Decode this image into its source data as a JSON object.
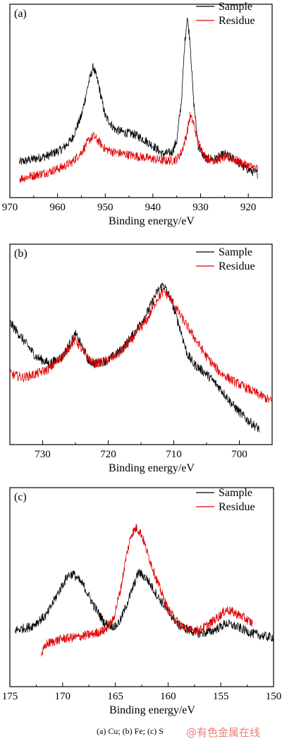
{
  "chart_data": [
    {
      "type": "line",
      "panel_label": "(a)",
      "xlabel": "Binding energy/eV",
      "ylabel": "",
      "xlim": [
        970,
        915
      ],
      "x_reversed": true,
      "xticks": [
        970,
        960,
        950,
        940,
        930,
        920
      ],
      "yticks": false,
      "grid": false,
      "legend_position": "top-right",
      "series": [
        {
          "name": "Sample",
          "color": "#000000",
          "x_range": [
            968,
            918
          ],
          "points": [
            [
              968,
              0.12
            ],
            [
              965,
              0.14
            ],
            [
              962,
              0.16
            ],
            [
              959,
              0.2
            ],
            [
              957,
              0.26
            ],
            [
              955,
              0.4
            ],
            [
              953.5,
              0.6
            ],
            [
              952.5,
              0.7
            ],
            [
              951.5,
              0.6
            ],
            [
              950,
              0.4
            ],
            [
              948,
              0.32
            ],
            [
              946,
              0.3
            ],
            [
              944,
              0.29
            ],
            [
              942,
              0.26
            ],
            [
              940,
              0.22
            ],
            [
              938,
              0.17
            ],
            [
              936,
              0.18
            ],
            [
              935,
              0.25
            ],
            [
              934,
              0.5
            ],
            [
              933.3,
              0.85
            ],
            [
              932.8,
              1.0
            ],
            [
              932.2,
              0.85
            ],
            [
              931.5,
              0.5
            ],
            [
              930.5,
              0.22
            ],
            [
              929,
              0.14
            ],
            [
              927,
              0.14
            ],
            [
              925,
              0.17
            ],
            [
              923,
              0.14
            ],
            [
              921,
              0.09
            ],
            [
              918,
              0.05
            ]
          ]
        },
        {
          "name": "Residue",
          "color": "#e00000",
          "x_range": [
            968,
            918
          ],
          "points": [
            [
              968,
              0.02
            ],
            [
              965,
              0.04
            ],
            [
              962,
              0.06
            ],
            [
              959,
              0.09
            ],
            [
              957,
              0.12
            ],
            [
              955,
              0.18
            ],
            [
              953.5,
              0.25
            ],
            [
              952.5,
              0.28
            ],
            [
              951.5,
              0.25
            ],
            [
              950,
              0.2
            ],
            [
              948,
              0.18
            ],
            [
              946,
              0.17
            ],
            [
              944,
              0.16
            ],
            [
              942,
              0.15
            ],
            [
              940,
              0.14
            ],
            [
              938,
              0.13
            ],
            [
              936,
              0.13
            ],
            [
              935,
              0.14
            ],
            [
              934,
              0.18
            ],
            [
              933,
              0.28
            ],
            [
              932.2,
              0.4
            ],
            [
              931.5,
              0.36
            ],
            [
              930.5,
              0.24
            ],
            [
              929,
              0.15
            ],
            [
              927,
              0.13
            ],
            [
              925,
              0.15
            ],
            [
              923,
              0.14
            ],
            [
              921,
              0.11
            ],
            [
              918,
              0.08
            ]
          ]
        }
      ]
    },
    {
      "type": "line",
      "panel_label": "(b)",
      "xlabel": "Binding energy/eV",
      "ylabel": "",
      "xlim": [
        735,
        695
      ],
      "x_reversed": true,
      "xticks": [
        730,
        720,
        710,
        700
      ],
      "yticks": false,
      "grid": false,
      "legend_position": "top-right",
      "series": [
        {
          "name": "Sample",
          "color": "#000000",
          "x_range": [
            735,
            697
          ],
          "points": [
            [
              735,
              0.62
            ],
            [
              733,
              0.52
            ],
            [
              731,
              0.42
            ],
            [
              729,
              0.38
            ],
            [
              727,
              0.42
            ],
            [
              725.5,
              0.52
            ],
            [
              725,
              0.55
            ],
            [
              724,
              0.48
            ],
            [
              723,
              0.4
            ],
            [
              722,
              0.38
            ],
            [
              720,
              0.4
            ],
            [
              718,
              0.46
            ],
            [
              716,
              0.56
            ],
            [
              714,
              0.68
            ],
            [
              712.5,
              0.8
            ],
            [
              711.6,
              0.84
            ],
            [
              710.5,
              0.76
            ],
            [
              709,
              0.58
            ],
            [
              708,
              0.44
            ],
            [
              707,
              0.38
            ],
            [
              705,
              0.32
            ],
            [
              703,
              0.24
            ],
            [
              701,
              0.14
            ],
            [
              699,
              0.06
            ],
            [
              697,
              0.0
            ]
          ]
        },
        {
          "name": "Residue",
          "color": "#e00000",
          "x_range": [
            735,
            695
          ],
          "points": [
            [
              735,
              0.32
            ],
            [
              733,
              0.3
            ],
            [
              731,
              0.32
            ],
            [
              729,
              0.35
            ],
            [
              727,
              0.42
            ],
            [
              725.5,
              0.5
            ],
            [
              725,
              0.52
            ],
            [
              724,
              0.46
            ],
            [
              723,
              0.4
            ],
            [
              722,
              0.38
            ],
            [
              720,
              0.4
            ],
            [
              718,
              0.45
            ],
            [
              716,
              0.54
            ],
            [
              714,
              0.64
            ],
            [
              712.5,
              0.76
            ],
            [
              711.5,
              0.8
            ],
            [
              710.5,
              0.76
            ],
            [
              709,
              0.66
            ],
            [
              707,
              0.54
            ],
            [
              705,
              0.42
            ],
            [
              703,
              0.33
            ],
            [
              701,
              0.28
            ],
            [
              699,
              0.24
            ],
            [
              697,
              0.2
            ],
            [
              695,
              0.16
            ]
          ]
        }
      ]
    },
    {
      "type": "line",
      "panel_label": "(c)",
      "xlabel": "Binding energy/eV",
      "ylabel": "",
      "xlim": [
        175,
        150
      ],
      "x_reversed": true,
      "xticks": [
        175,
        170,
        165,
        160,
        155,
        150
      ],
      "yticks": false,
      "grid": false,
      "legend_position": "top-right",
      "series": [
        {
          "name": "Sample",
          "color": "#000000",
          "x_range": [
            174.5,
            150
          ],
          "points": [
            [
              174.5,
              0.24
            ],
            [
              173,
              0.26
            ],
            [
              171.5,
              0.33
            ],
            [
              170.5,
              0.45
            ],
            [
              169.5,
              0.56
            ],
            [
              169,
              0.57
            ],
            [
              168,
              0.5
            ],
            [
              167,
              0.38
            ],
            [
              166,
              0.28
            ],
            [
              165,
              0.26
            ],
            [
              164.5,
              0.3
            ],
            [
              163.5,
              0.46
            ],
            [
              162.8,
              0.58
            ],
            [
              162,
              0.54
            ],
            [
              161,
              0.44
            ],
            [
              160,
              0.35
            ],
            [
              159,
              0.27
            ],
            [
              158,
              0.24
            ],
            [
              157,
              0.22
            ],
            [
              156,
              0.23
            ],
            [
              155,
              0.26
            ],
            [
              154.5,
              0.28
            ],
            [
              153.5,
              0.26
            ],
            [
              152,
              0.22
            ],
            [
              150.5,
              0.2
            ],
            [
              150,
              0.2
            ]
          ]
        },
        {
          "name": "Residue",
          "color": "#e00000",
          "x_range": [
            172,
            152
          ],
          "points": [
            [
              172,
              0.1
            ],
            [
              171.5,
              0.16
            ],
            [
              170,
              0.19
            ],
            [
              168.5,
              0.2
            ],
            [
              167,
              0.22
            ],
            [
              166,
              0.24
            ],
            [
              165.2,
              0.3
            ],
            [
              164.5,
              0.48
            ],
            [
              164,
              0.66
            ],
            [
              163.5,
              0.8
            ],
            [
              163,
              0.84
            ],
            [
              162.5,
              0.8
            ],
            [
              162,
              0.7
            ],
            [
              161,
              0.52
            ],
            [
              160,
              0.36
            ],
            [
              159,
              0.28
            ],
            [
              158,
              0.24
            ],
            [
              157,
              0.24
            ],
            [
              156,
              0.28
            ],
            [
              155,
              0.33
            ],
            [
              154.5,
              0.36
            ],
            [
              154,
              0.35
            ],
            [
              153,
              0.32
            ],
            [
              152,
              0.28
            ]
          ]
        }
      ]
    }
  ],
  "caption": "(a) Cu; (b) Fe; (c) S",
  "watermark": "@有色金属在线"
}
